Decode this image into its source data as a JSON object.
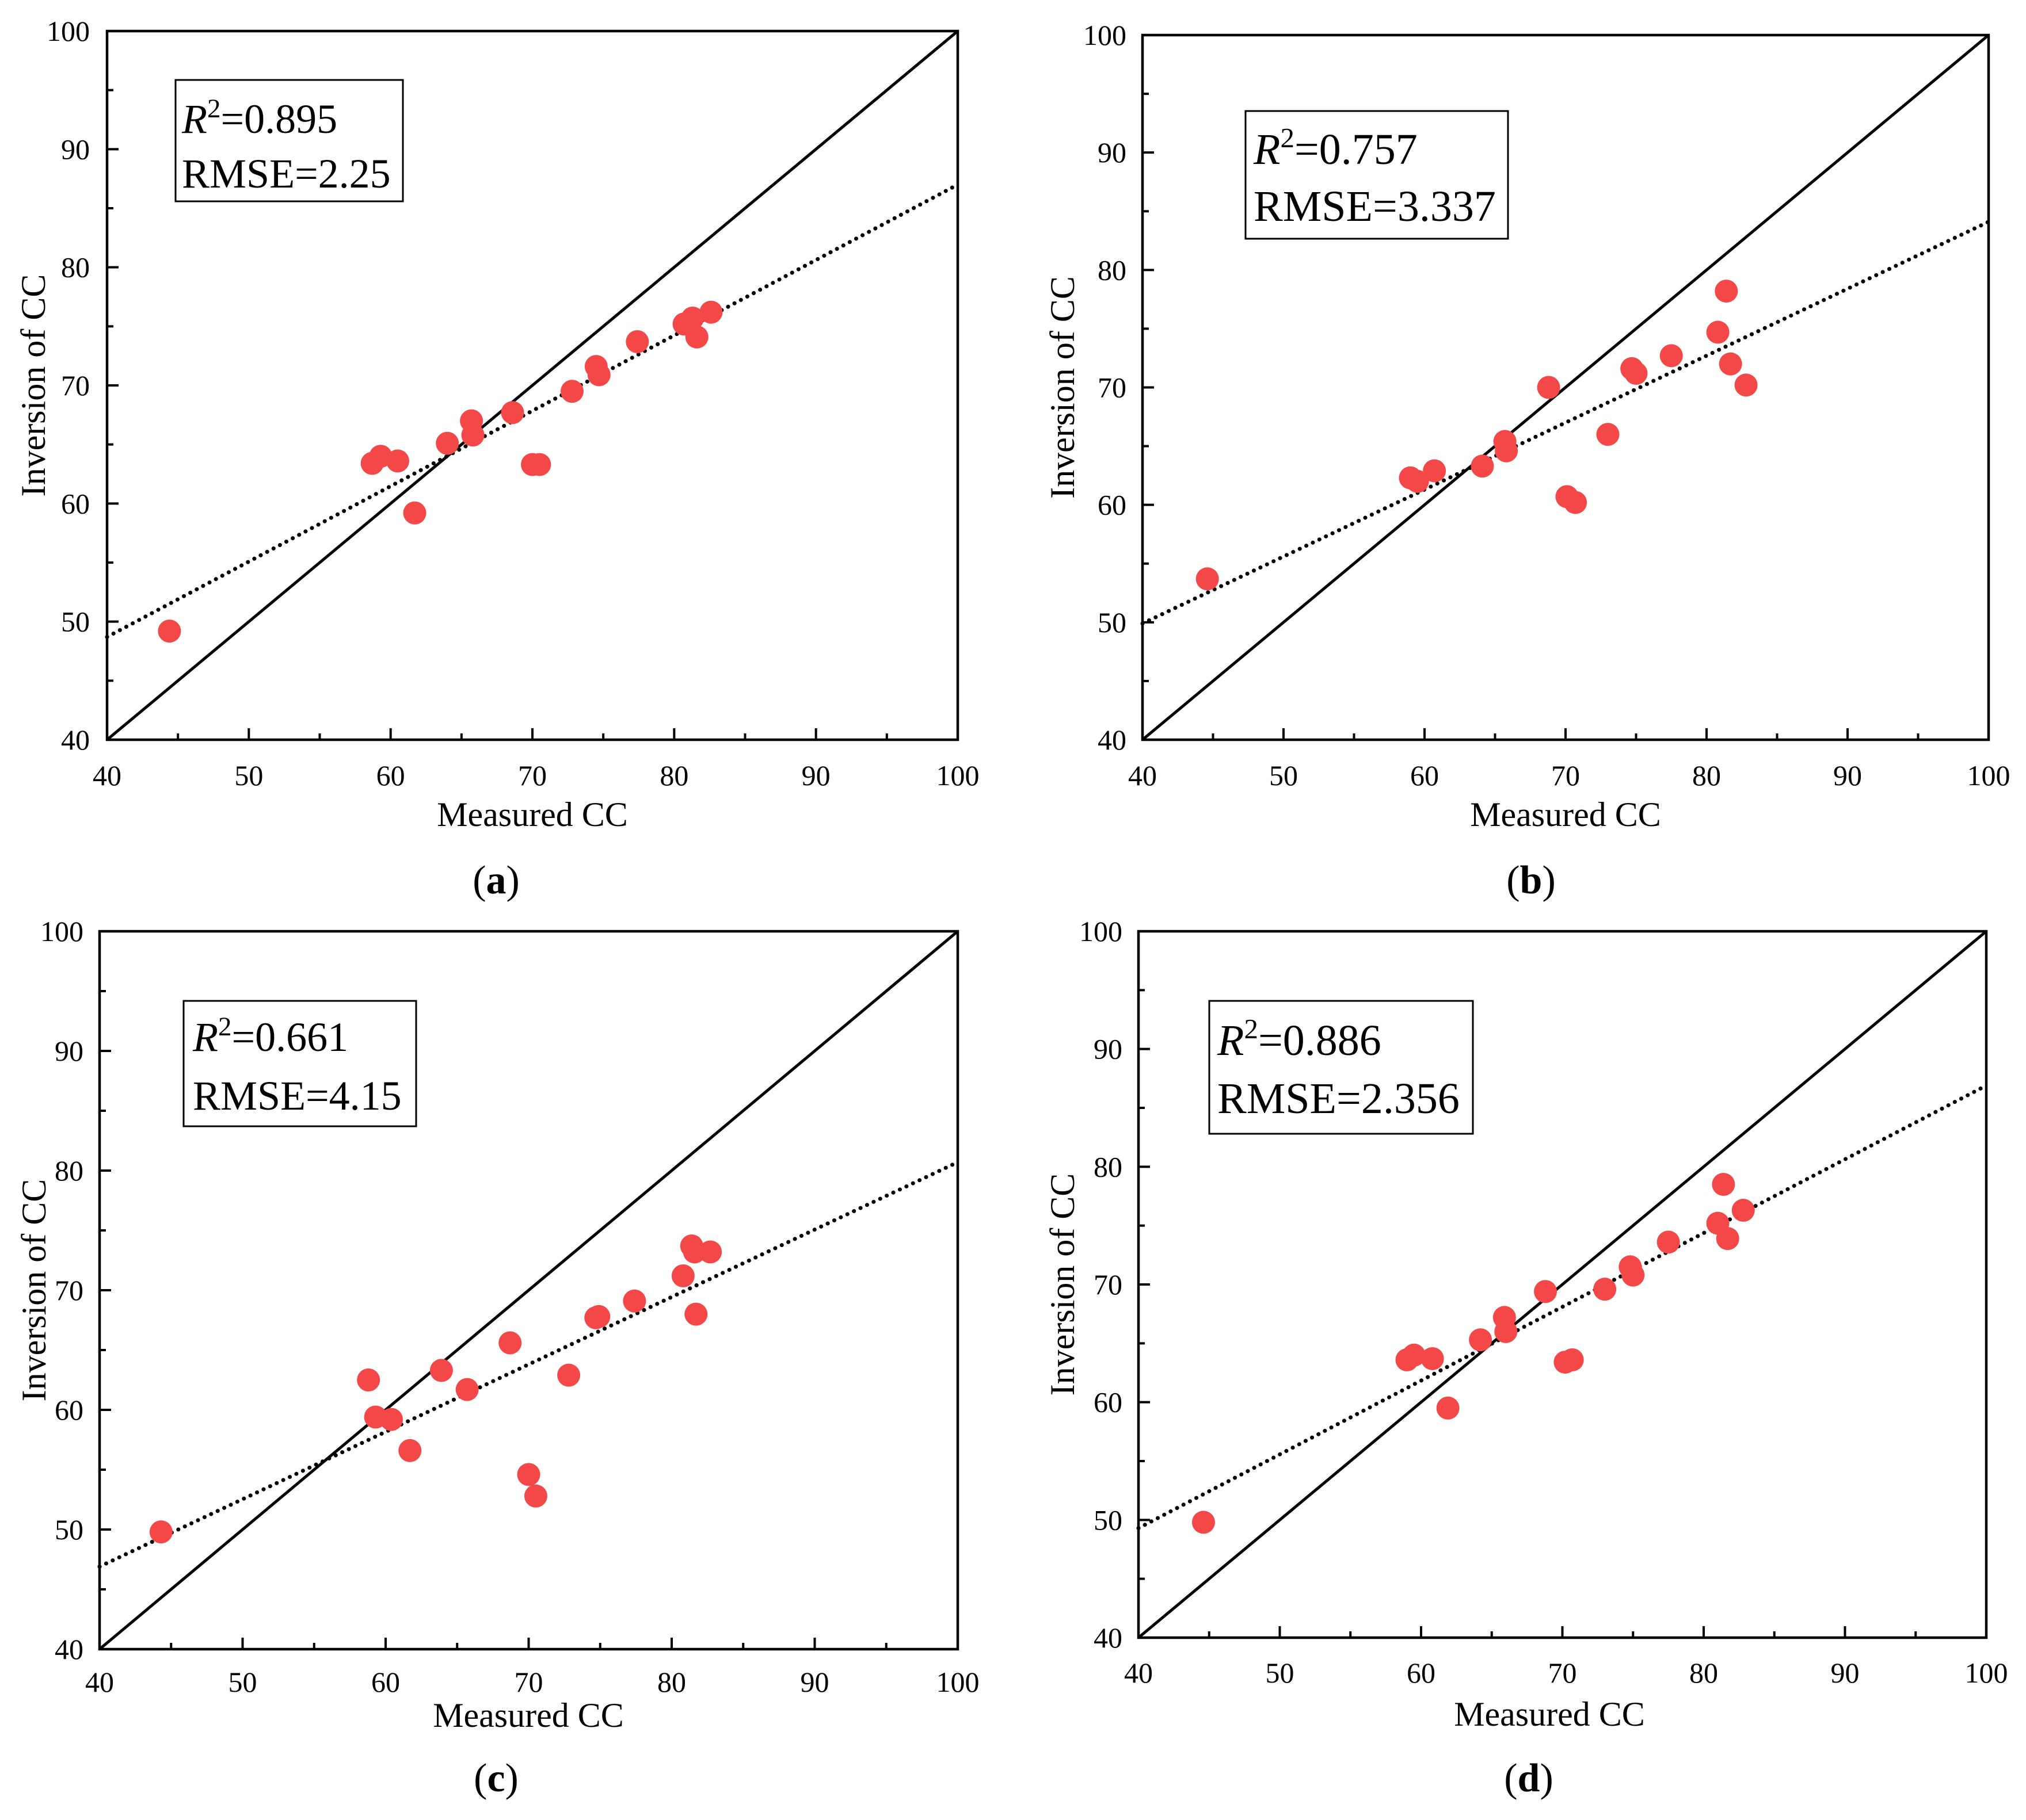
{
  "colors": {
    "marker": "#f44848",
    "line": "#000000",
    "background": "#ffffff"
  },
  "chart_data": [
    {
      "type": "scatter",
      "title": "",
      "label": {
        "open": "(",
        "letter": "a",
        "close": ")"
      },
      "xlabel": "Measured CC",
      "ylabel": "Inversion of CC",
      "xlim": [
        40,
        100
      ],
      "ylim": [
        40,
        100
      ],
      "xticks": [
        40,
        50,
        60,
        70,
        80,
        90,
        100
      ],
      "yticks": [
        40,
        50,
        60,
        70,
        80,
        90,
        100
      ],
      "grid": false,
      "points": {
        "x": [
          44.4,
          58.7,
          59.3,
          60.5,
          61.7,
          64.0,
          65.7,
          65.8,
          68.6,
          70.0,
          70.5,
          72.8,
          74.5,
          74.7,
          77.4,
          80.7,
          81.3,
          81.6,
          82.6
        ],
        "y": [
          49.2,
          63.4,
          64.0,
          63.6,
          59.2,
          65.1,
          67.0,
          65.8,
          67.7,
          63.3,
          63.3,
          69.5,
          71.6,
          70.9,
          73.7,
          75.2,
          75.7,
          74.1,
          76.2
        ]
      },
      "fit_line": {
        "x": [
          40,
          100
        ],
        "y": [
          48.7,
          87.0
        ],
        "style": "dotted"
      },
      "identity_line": {
        "x": [
          40,
          100
        ],
        "y": [
          40,
          100
        ],
        "style": "solid"
      },
      "stats": {
        "r2_symbol": "R",
        "r2_exponent": "2",
        "r2_value": "=0.895",
        "rmse": "RMSE=2.25"
      },
      "legend_position": "top-left"
    },
    {
      "type": "scatter",
      "title": "",
      "label": {
        "open": "(",
        "letter": "b",
        "close": ")"
      },
      "xlabel": "Measured CC",
      "ylabel": "Inversion of CC",
      "xlim": [
        40,
        100
      ],
      "ylim": [
        40,
        100
      ],
      "xticks": [
        40,
        50,
        60,
        70,
        80,
        90,
        100
      ],
      "yticks": [
        40,
        50,
        60,
        70,
        80,
        90,
        100
      ],
      "grid": false,
      "points": {
        "x": [
          44.6,
          59.0,
          59.5,
          60.7,
          64.1,
          65.7,
          65.8,
          68.8,
          70.1,
          70.7,
          73.0,
          74.7,
          75.0,
          77.5,
          80.8,
          81.4,
          81.7,
          82.8
        ],
        "y": [
          53.7,
          62.3,
          62.0,
          62.9,
          63.3,
          65.4,
          64.6,
          70.0,
          60.7,
          60.2,
          66.0,
          71.6,
          71.2,
          72.7,
          74.7,
          78.2,
          72.0,
          70.2
        ]
      },
      "fit_line": {
        "x": [
          40,
          100
        ],
        "y": [
          49.9,
          84.1
        ],
        "style": "dotted"
      },
      "identity_line": {
        "x": [
          40,
          100
        ],
        "y": [
          40,
          100
        ],
        "style": "solid"
      },
      "stats": {
        "r2_symbol": "R",
        "r2_exponent": "2",
        "r2_value": "=0.757",
        "rmse": "RMSE=3.337"
      },
      "legend_position": "top-left"
    },
    {
      "type": "scatter",
      "title": "",
      "label": {
        "open": "(",
        "letter": "c",
        "close": ")"
      },
      "xlabel": "Measured CC",
      "ylabel": "Inversion of CC",
      "xlim": [
        40,
        100
      ],
      "ylim": [
        40,
        100
      ],
      "xticks": [
        40,
        50,
        60,
        70,
        80,
        90,
        100
      ],
      "yticks": [
        40,
        50,
        60,
        70,
        80,
        90,
        100
      ],
      "grid": false,
      "points": {
        "x": [
          44.3,
          58.8,
          59.3,
          60.4,
          61.7,
          63.9,
          65.7,
          68.7,
          70.0,
          70.5,
          72.8,
          74.7,
          74.9,
          77.4,
          80.8,
          81.4,
          81.6,
          81.7,
          82.7
        ],
        "y": [
          49.8,
          62.5,
          59.4,
          59.2,
          56.6,
          63.3,
          61.7,
          65.6,
          54.6,
          52.8,
          62.9,
          67.7,
          67.8,
          69.1,
          71.2,
          73.7,
          73.2,
          68.0,
          73.2
        ]
      },
      "fit_line": {
        "x": [
          40,
          100
        ],
        "y": [
          46.9,
          80.7
        ],
        "style": "dotted"
      },
      "identity_line": {
        "x": [
          40,
          100
        ],
        "y": [
          40,
          100
        ],
        "style": "solid"
      },
      "stats": {
        "r2_symbol": "R",
        "r2_exponent": "2",
        "r2_value": "=0.661",
        "rmse": "RMSE=4.15"
      },
      "legend_position": "top-left"
    },
    {
      "type": "scatter",
      "title": "",
      "label": {
        "open": "(",
        "letter": "d",
        "close": ")"
      },
      "xlabel": "Measured CC",
      "ylabel": "Inversion of CC",
      "xlim": [
        40,
        100
      ],
      "ylim": [
        40,
        100
      ],
      "xticks": [
        40,
        50,
        60,
        70,
        80,
        90,
        100
      ],
      "yticks": [
        40,
        50,
        60,
        70,
        80,
        90,
        100
      ],
      "grid": false,
      "points": {
        "x": [
          44.6,
          59.0,
          59.5,
          60.8,
          61.9,
          64.2,
          65.9,
          66.0,
          68.8,
          70.2,
          70.7,
          73.0,
          74.8,
          75.0,
          77.5,
          81.0,
          81.4,
          81.7,
          82.8
        ],
        "y": [
          49.8,
          63.6,
          64.0,
          63.7,
          59.5,
          65.3,
          67.2,
          66.0,
          69.4,
          63.4,
          63.6,
          69.6,
          71.5,
          70.8,
          73.6,
          75.2,
          78.5,
          73.9,
          76.3
        ]
      },
      "fit_line": {
        "x": [
          40,
          100
        ],
        "y": [
          49.3,
          86.9
        ],
        "style": "dotted"
      },
      "identity_line": {
        "x": [
          40,
          100
        ],
        "y": [
          40,
          100
        ],
        "style": "solid"
      },
      "stats": {
        "r2_symbol": "R",
        "r2_exponent": "2",
        "r2_value": "=0.886",
        "rmse": "RMSE=2.356"
      },
      "legend_position": "top-left"
    }
  ]
}
